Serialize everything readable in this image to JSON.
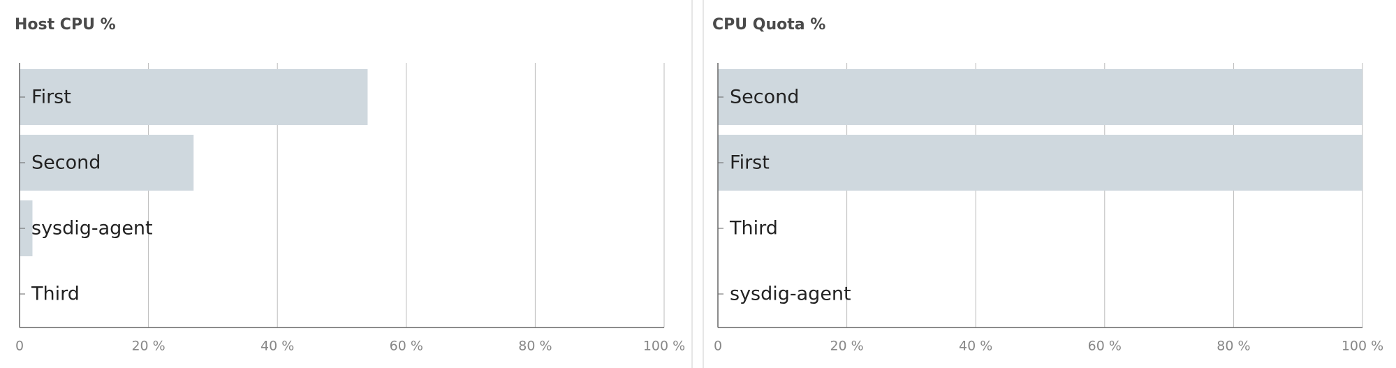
{
  "chart_data": [
    {
      "type": "bar",
      "orientation": "horizontal",
      "title": "Host CPU %",
      "categories": [
        "First",
        "Second",
        "sysdig-agent",
        "Third"
      ],
      "values": [
        54,
        27,
        2,
        0
      ],
      "color": "#cfd8de",
      "xlim": [
        0,
        100
      ],
      "xticks": [
        0,
        {
          "value": 20,
          "label": "20 %"
        },
        {
          "value": 40,
          "label": "40 %"
        },
        {
          "value": 60,
          "label": "60 %"
        },
        {
          "value": 80,
          "label": "80 %"
        },
        {
          "value": 100,
          "label": "100 %"
        }
      ],
      "grid": true
    },
    {
      "type": "bar",
      "orientation": "horizontal",
      "title": "CPU Quota %",
      "categories": [
        "Second",
        "First",
        "Third",
        "sysdig-agent"
      ],
      "values": [
        100,
        100,
        0,
        0
      ],
      "color": "#cfd8de",
      "xlim": [
        0,
        100
      ],
      "xticks": [
        0,
        {
          "value": 20,
          "label": "20 %"
        },
        {
          "value": 40,
          "label": "40 %"
        },
        {
          "value": 60,
          "label": "60 %"
        },
        {
          "value": 80,
          "label": "80 %"
        },
        {
          "value": 100,
          "label": "100 %"
        }
      ],
      "grid": true
    }
  ]
}
